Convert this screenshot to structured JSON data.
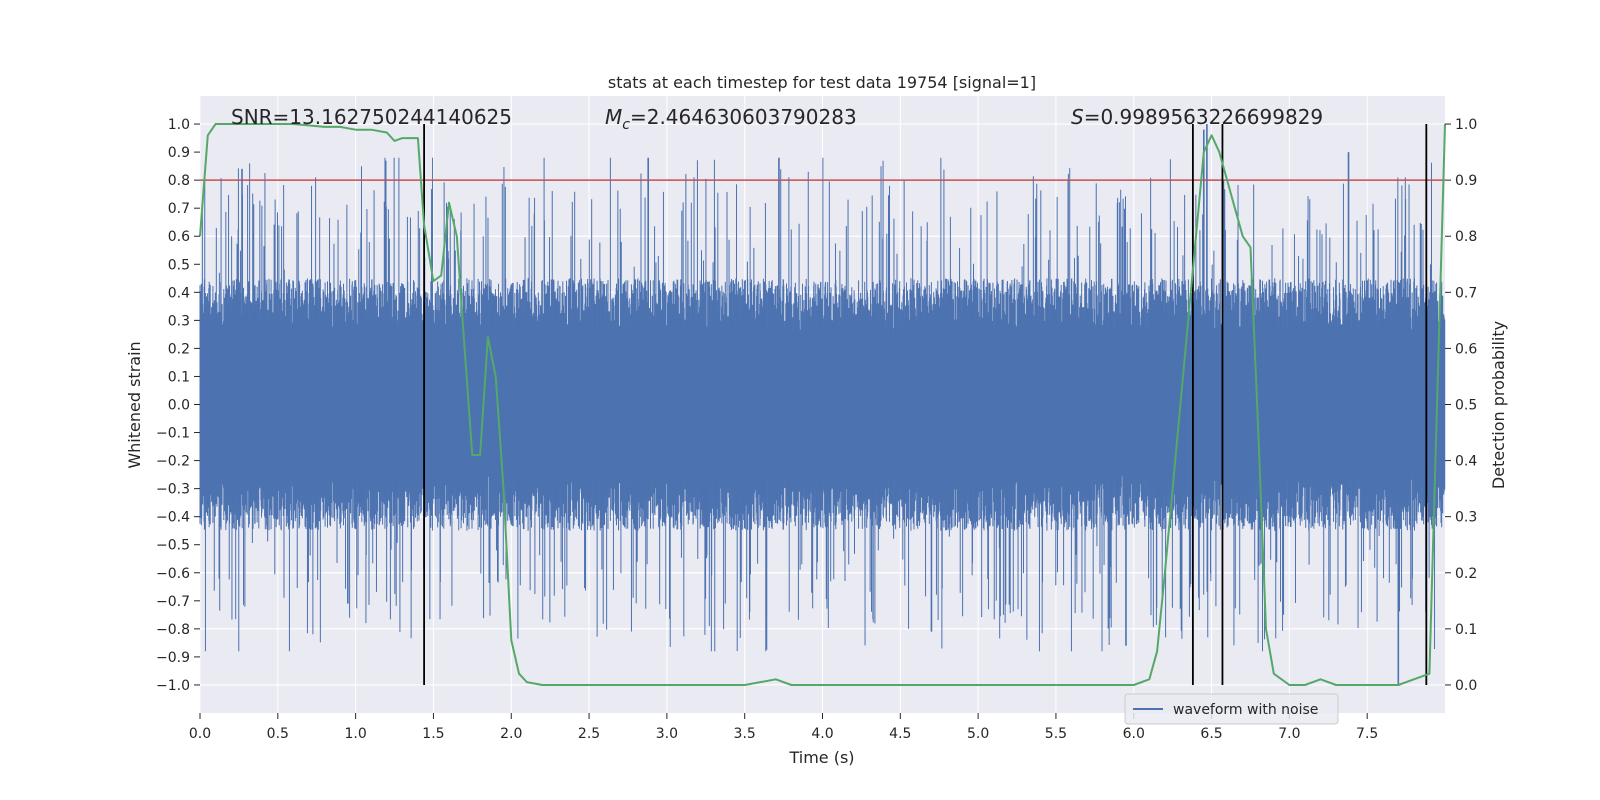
{
  "chart_data": {
    "type": "line",
    "title": "stats at each timestep for test data 19754 [signal=1]",
    "xlabel": "Time (s)",
    "ylabel": "Whitened strain",
    "y2label": "Detection probability",
    "xlim": [
      0.0,
      8.0
    ],
    "ylim": [
      -1.1,
      1.1
    ],
    "y2lim": [
      -0.05,
      1.05
    ],
    "xticks": [
      "0.0",
      "0.5",
      "1.0",
      "1.5",
      "2.0",
      "2.5",
      "3.0",
      "3.5",
      "4.0",
      "4.5",
      "5.0",
      "5.5",
      "6.0",
      "6.5",
      "7.0",
      "7.5"
    ],
    "yticks": [
      "−1.0",
      "−0.9",
      "−0.8",
      "−0.7",
      "−0.6",
      "−0.5",
      "−0.4",
      "−0.3",
      "−0.2",
      "−0.1",
      "0.0",
      "0.1",
      "0.2",
      "0.3",
      "0.4",
      "0.5",
      "0.6",
      "0.7",
      "0.8",
      "0.9",
      "1.0"
    ],
    "y2ticks": [
      "0.0",
      "0.1",
      "0.2",
      "0.3",
      "0.4",
      "0.5",
      "0.6",
      "0.7",
      "0.8",
      "0.9",
      "1.0"
    ],
    "annotations": {
      "snr": "SNR=13.162750244140625",
      "mc_symbol": "M",
      "mc_sub": "c",
      "mc_value": "=2.464630603790283",
      "s_symbol": "S",
      "s_value": "=0.9989563226699829"
    },
    "threshold": {
      "y2": 0.9,
      "color": "#c44e52"
    },
    "vlines": [
      1.44,
      6.38,
      6.57,
      7.88
    ],
    "legend": {
      "label": "waveform with noise",
      "position": "lower-right"
    },
    "waveform": {
      "name": "waveform with noise",
      "color": "#4c72b0",
      "amplitude_typical": 0.45,
      "peaks_max": 1.0
    },
    "probability": {
      "name": "detection probability",
      "color": "#55a868",
      "x": [
        0.0,
        0.05,
        0.1,
        0.2,
        0.4,
        0.6,
        0.8,
        0.9,
        1.0,
        1.1,
        1.2,
        1.25,
        1.3,
        1.4,
        1.44,
        1.5,
        1.55,
        1.6,
        1.65,
        1.7,
        1.75,
        1.8,
        1.85,
        1.9,
        1.95,
        2.0,
        2.05,
        2.1,
        2.2,
        2.5,
        3.0,
        3.5,
        3.7,
        3.8,
        4.0,
        4.5,
        5.0,
        5.5,
        6.0,
        6.1,
        6.15,
        6.2,
        6.3,
        6.4,
        6.45,
        6.5,
        6.55,
        6.6,
        6.65,
        6.7,
        6.75,
        6.8,
        6.85,
        6.9,
        7.0,
        7.1,
        7.2,
        7.3,
        7.5,
        7.7,
        7.8,
        7.9,
        8.0
      ],
      "y": [
        0.8,
        0.98,
        1.0,
        1.0,
        1.0,
        1.0,
        0.995,
        0.995,
        0.99,
        0.99,
        0.985,
        0.97,
        0.975,
        0.975,
        0.82,
        0.72,
        0.73,
        0.86,
        0.8,
        0.6,
        0.41,
        0.41,
        0.62,
        0.55,
        0.35,
        0.08,
        0.02,
        0.005,
        0.0,
        0.0,
        0.0,
        0.0,
        0.01,
        0.0,
        0.0,
        0.0,
        0.0,
        0.0,
        0.0,
        0.01,
        0.06,
        0.2,
        0.5,
        0.8,
        0.95,
        0.98,
        0.95,
        0.9,
        0.85,
        0.8,
        0.78,
        0.45,
        0.1,
        0.02,
        0.0,
        0.0,
        0.01,
        0.0,
        0.0,
        0.0,
        0.01,
        0.02,
        1.0
      ]
    }
  }
}
